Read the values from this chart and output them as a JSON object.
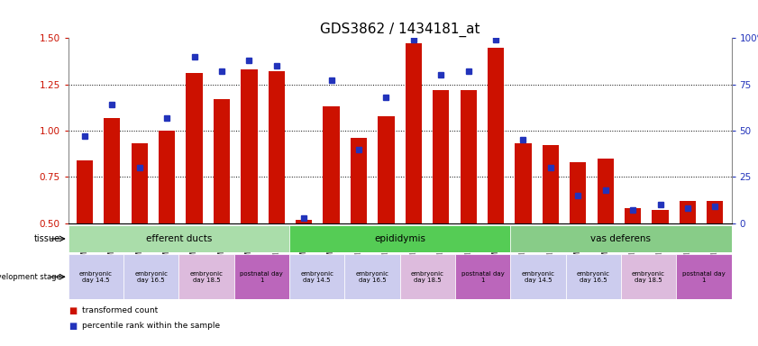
{
  "title": "GDS3862 / 1434181_at",
  "samples": [
    "GSM560923",
    "GSM560924",
    "GSM560925",
    "GSM560926",
    "GSM560927",
    "GSM560928",
    "GSM560929",
    "GSM560930",
    "GSM560931",
    "GSM560932",
    "GSM560933",
    "GSM560934",
    "GSM560935",
    "GSM560936",
    "GSM560937",
    "GSM560938",
    "GSM560939",
    "GSM560940",
    "GSM560941",
    "GSM560942",
    "GSM560943",
    "GSM560944",
    "GSM560945",
    "GSM560946"
  ],
  "red_values": [
    0.84,
    1.07,
    0.93,
    1.0,
    1.31,
    1.17,
    1.33,
    1.32,
    0.52,
    1.13,
    0.96,
    1.08,
    1.47,
    1.22,
    1.22,
    1.45,
    0.93,
    0.92,
    0.83,
    0.85,
    0.58,
    0.57,
    0.62,
    0.62
  ],
  "blue_values": [
    47,
    64,
    30,
    57,
    90,
    82,
    88,
    85,
    3,
    77,
    40,
    68,
    99,
    80,
    82,
    99,
    45,
    30,
    15,
    18,
    7,
    10,
    8,
    9
  ],
  "ylim_left": [
    0.5,
    1.5
  ],
  "ylim_right": [
    0,
    100
  ],
  "yticks_left": [
    0.5,
    0.75,
    1.0,
    1.25,
    1.5
  ],
  "yticks_right": [
    0,
    25,
    50,
    75,
    100
  ],
  "bar_color": "#CC1100",
  "dot_color": "#2233BB",
  "tissue_groups": [
    {
      "label": "efferent ducts",
      "start": 0,
      "end": 7
    },
    {
      "label": "epididymis",
      "start": 8,
      "end": 15
    },
    {
      "label": "vas deferens",
      "start": 16,
      "end": 23
    }
  ],
  "tissue_colors": {
    "efferent ducts": "#AADDAA",
    "epididymis": "#55CC55",
    "vas deferens": "#88CC88"
  },
  "dev_stage_groups": [
    {
      "label": "embryonic\nday 14.5",
      "start": 0,
      "end": 1
    },
    {
      "label": "embryonic\nday 16.5",
      "start": 2,
      "end": 3
    },
    {
      "label": "embryonic\nday 18.5",
      "start": 4,
      "end": 5
    },
    {
      "label": "postnatal day\n1",
      "start": 6,
      "end": 7
    },
    {
      "label": "embryonic\nday 14.5",
      "start": 8,
      "end": 9
    },
    {
      "label": "embryonic\nday 16.5",
      "start": 10,
      "end": 11
    },
    {
      "label": "embryonic\nday 18.5",
      "start": 12,
      "end": 13
    },
    {
      "label": "postnatal day\n1",
      "start": 14,
      "end": 15
    },
    {
      "label": "embryonic\nday 14.5",
      "start": 16,
      "end": 17
    },
    {
      "label": "embryonic\nday 16.5",
      "start": 18,
      "end": 19
    },
    {
      "label": "embryonic\nday 18.5",
      "start": 20,
      "end": 21
    },
    {
      "label": "postnatal day\n1",
      "start": 22,
      "end": 23
    }
  ],
  "dev_colors": {
    "embryonic\nday 14.5": "#CCCCEE",
    "embryonic\nday 16.5": "#CCCCEE",
    "embryonic\nday 18.5": "#DDBBDD",
    "postnatal day\n1": "#BB66BB"
  },
  "legend_red": "transformed count",
  "legend_blue": "percentile rank within the sample",
  "title_fontsize": 11,
  "axis_color_left": "#CC1100",
  "axis_color_right": "#2233BB"
}
